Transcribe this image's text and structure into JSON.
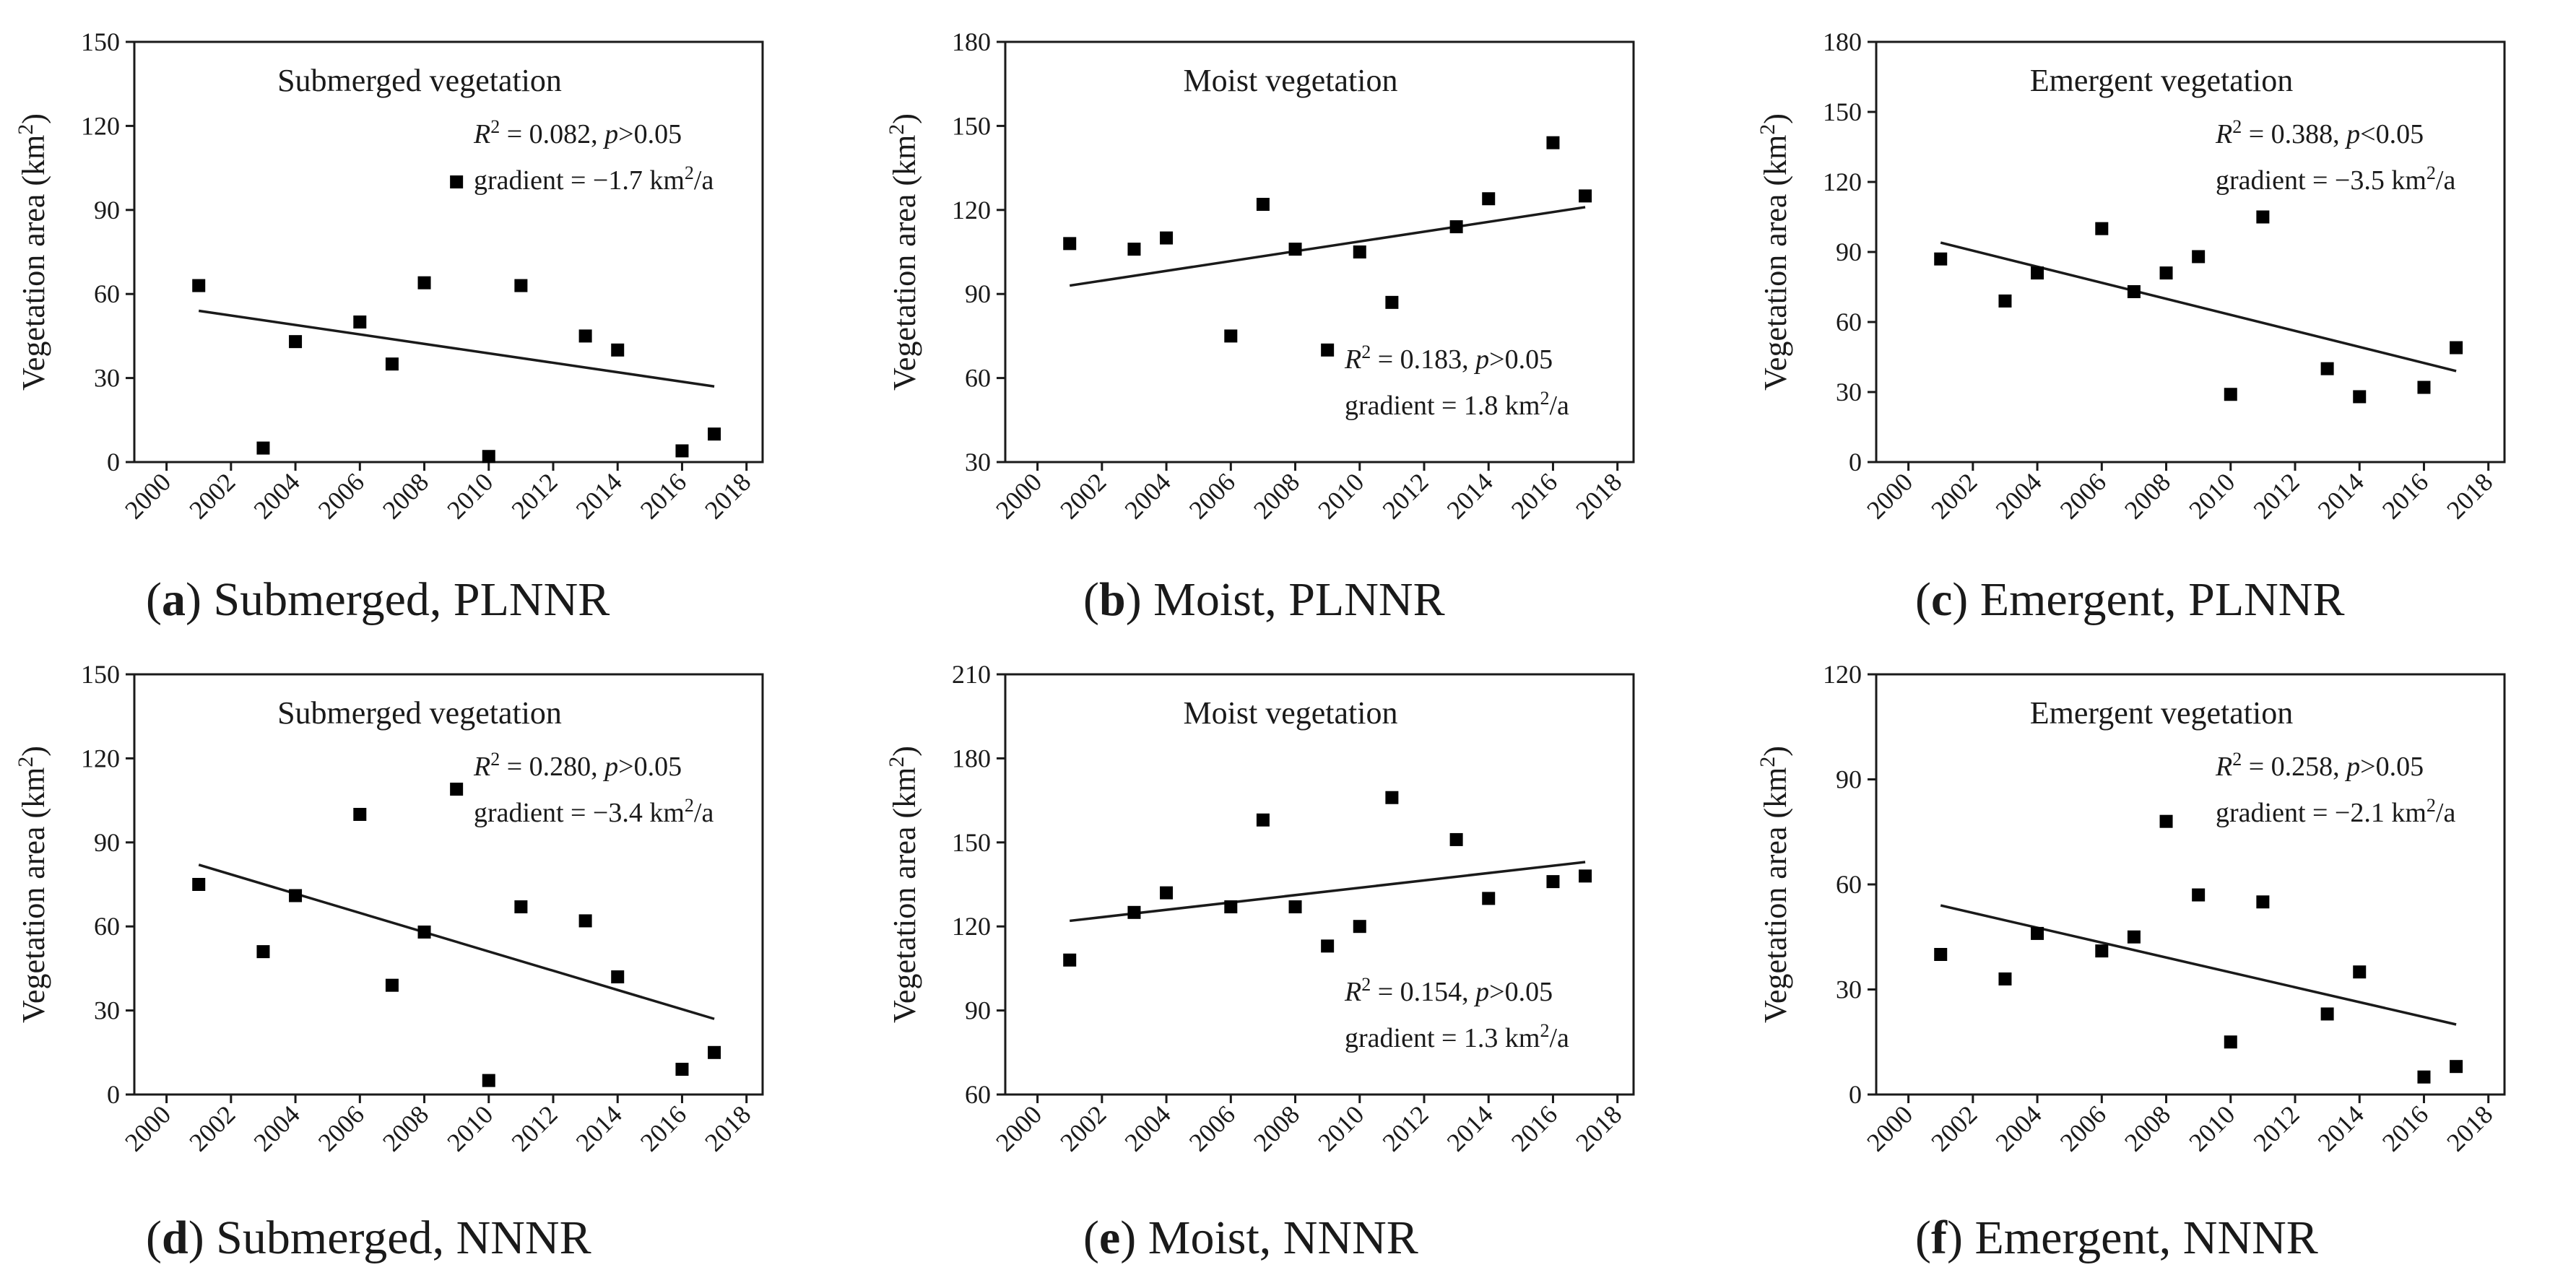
{
  "figure": {
    "background": "#ffffff",
    "ink": "#000000"
  },
  "chart_data": [
    {
      "type": "scatter",
      "panel": "a",
      "title": "Submerged vegetation",
      "caption_letter": "a",
      "caption_rest": " Submerged, PLNNR",
      "ylabel_main": "Vegetation area (km",
      "ylabel_sup": "2",
      "ylabel_end": ")",
      "x_ticks": [
        2000,
        2002,
        2004,
        2006,
        2008,
        2010,
        2012,
        2014,
        2016,
        2018
      ],
      "xlim": [
        1999,
        2018.5
      ],
      "ylim": [
        0,
        150
      ],
      "y_ticks": [
        0,
        30,
        60,
        90,
        120,
        150
      ],
      "points": [
        [
          2001,
          63
        ],
        [
          2003,
          5
        ],
        [
          2004,
          43
        ],
        [
          2006,
          50
        ],
        [
          2007,
          35
        ],
        [
          2008,
          64
        ],
        [
          2009,
          100
        ],
        [
          2010,
          2
        ],
        [
          2011,
          63
        ],
        [
          2013,
          45
        ],
        [
          2014,
          40
        ],
        [
          2016,
          4
        ],
        [
          2017,
          10
        ]
      ],
      "fit": {
        "x": [
          2001,
          2017
        ],
        "y": [
          54,
          27
        ]
      },
      "stats": {
        "r2": "0.082",
        "p_op": ">",
        "p_val": "0.05",
        "gradient": "−1.7"
      },
      "stat_pos": "top-right"
    },
    {
      "type": "scatter",
      "panel": "b",
      "title": "Moist vegetation",
      "caption_letter": "b",
      "caption_rest": " Moist, PLNNR",
      "ylabel_main": "Vegetation area (km",
      "ylabel_sup": "2",
      "ylabel_end": ")",
      "x_ticks": [
        2000,
        2002,
        2004,
        2006,
        2008,
        2010,
        2012,
        2014,
        2016,
        2018
      ],
      "xlim": [
        1999,
        2018.5
      ],
      "ylim": [
        30,
        180
      ],
      "y_ticks": [
        30,
        60,
        90,
        120,
        150,
        180
      ],
      "points": [
        [
          2001,
          108
        ],
        [
          2003,
          106
        ],
        [
          2004,
          110
        ],
        [
          2006,
          75
        ],
        [
          2007,
          122
        ],
        [
          2008,
          106
        ],
        [
          2009,
          70
        ],
        [
          2010,
          105
        ],
        [
          2011,
          87
        ],
        [
          2013,
          114
        ],
        [
          2014,
          124
        ],
        [
          2016,
          144
        ],
        [
          2017,
          125
        ]
      ],
      "fit": {
        "x": [
          2001,
          2017
        ],
        "y": [
          93,
          121
        ]
      },
      "stats": {
        "r2": "0.183",
        "p_op": ">",
        "p_val": "0.05",
        "gradient": "1.8"
      },
      "stat_pos": "bottom-right"
    },
    {
      "type": "scatter",
      "panel": "c",
      "title": "Emergent vegetation",
      "caption_letter": "c",
      "caption_rest": " Emergent, PLNNR",
      "ylabel_main": "Vegetation area (km",
      "ylabel_sup": "2",
      "ylabel_end": ")",
      "x_ticks": [
        2000,
        2002,
        2004,
        2006,
        2008,
        2010,
        2012,
        2014,
        2016,
        2018
      ],
      "xlim": [
        1999,
        2018.5
      ],
      "ylim": [
        0,
        180
      ],
      "y_ticks": [
        0,
        30,
        60,
        90,
        120,
        150,
        180
      ],
      "points": [
        [
          2001,
          87
        ],
        [
          2003,
          69
        ],
        [
          2004,
          81
        ],
        [
          2006,
          100
        ],
        [
          2007,
          73
        ],
        [
          2008,
          81
        ],
        [
          2009,
          88
        ],
        [
          2010,
          29
        ],
        [
          2011,
          105
        ],
        [
          2013,
          40
        ],
        [
          2014,
          28
        ],
        [
          2016,
          32
        ],
        [
          2017,
          49
        ]
      ],
      "fit": {
        "x": [
          2001,
          2017
        ],
        "y": [
          94,
          39
        ]
      },
      "stats": {
        "r2": "0.388",
        "p_op": "<",
        "p_val": "0.05",
        "gradient": "−3.5"
      },
      "stat_pos": "top-right"
    },
    {
      "type": "scatter",
      "panel": "d",
      "title": "Submerged vegetation",
      "caption_letter": "d",
      "caption_rest": " Submerged, NNNR",
      "ylabel_main": "Vegetation area (km",
      "ylabel_sup": "2",
      "ylabel_end": ")",
      "x_ticks": [
        2000,
        2002,
        2004,
        2006,
        2008,
        2010,
        2012,
        2014,
        2016,
        2018
      ],
      "xlim": [
        1999,
        2018.5
      ],
      "ylim": [
        0,
        150
      ],
      "y_ticks": [
        0,
        30,
        60,
        90,
        120,
        150
      ],
      "points": [
        [
          2001,
          75
        ],
        [
          2003,
          51
        ],
        [
          2004,
          71
        ],
        [
          2006,
          100
        ],
        [
          2007,
          39
        ],
        [
          2008,
          58
        ],
        [
          2009,
          109
        ],
        [
          2010,
          5
        ],
        [
          2011,
          67
        ],
        [
          2013,
          62
        ],
        [
          2014,
          42
        ],
        [
          2016,
          9
        ],
        [
          2017,
          15
        ]
      ],
      "fit": {
        "x": [
          2001,
          2017
        ],
        "y": [
          82,
          27
        ]
      },
      "stats": {
        "r2": "0.280",
        "p_op": ">",
        "p_val": "0.05",
        "gradient": "−3.4"
      },
      "stat_pos": "top-right"
    },
    {
      "type": "scatter",
      "panel": "e",
      "title": "Moist vegetation",
      "caption_letter": "e",
      "caption_rest": " Moist, NNNR",
      "ylabel_main": "Vegetation area (km",
      "ylabel_sup": "2",
      "ylabel_end": ")",
      "x_ticks": [
        2000,
        2002,
        2004,
        2006,
        2008,
        2010,
        2012,
        2014,
        2016,
        2018
      ],
      "xlim": [
        1999,
        2018.5
      ],
      "ylim": [
        60,
        210
      ],
      "y_ticks": [
        60,
        90,
        120,
        150,
        180,
        210
      ],
      "points": [
        [
          2001,
          108
        ],
        [
          2003,
          125
        ],
        [
          2004,
          132
        ],
        [
          2006,
          127
        ],
        [
          2007,
          158
        ],
        [
          2008,
          127
        ],
        [
          2009,
          113
        ],
        [
          2010,
          120
        ],
        [
          2011,
          166
        ],
        [
          2013,
          151
        ],
        [
          2014,
          130
        ],
        [
          2016,
          136
        ],
        [
          2017,
          138
        ]
      ],
      "fit": {
        "x": [
          2001,
          2017
        ],
        "y": [
          122,
          143
        ]
      },
      "stats": {
        "r2": "0.154",
        "p_op": ">",
        "p_val": "0.05",
        "gradient": "1.3"
      },
      "stat_pos": "bottom-right"
    },
    {
      "type": "scatter",
      "panel": "f",
      "title": "Emergent vegetation",
      "caption_letter": "f",
      "caption_rest": " Emergent, NNNR",
      "ylabel_main": "Vegetation area (km",
      "ylabel_sup": "2",
      "ylabel_end": ")",
      "x_ticks": [
        2000,
        2002,
        2004,
        2006,
        2008,
        2010,
        2012,
        2014,
        2016,
        2018
      ],
      "xlim": [
        1999,
        2018.5
      ],
      "ylim": [
        0,
        120
      ],
      "y_ticks": [
        0,
        30,
        60,
        90,
        120
      ],
      "points": [
        [
          2001,
          40
        ],
        [
          2003,
          33
        ],
        [
          2004,
          46
        ],
        [
          2006,
          41
        ],
        [
          2007,
          45
        ],
        [
          2008,
          78
        ],
        [
          2009,
          57
        ],
        [
          2010,
          15
        ],
        [
          2011,
          55
        ],
        [
          2013,
          23
        ],
        [
          2014,
          35
        ],
        [
          2016,
          5
        ],
        [
          2017,
          8
        ]
      ],
      "fit": {
        "x": [
          2001,
          2017
        ],
        "y": [
          54,
          20
        ]
      },
      "stats": {
        "r2": "0.258",
        "p_op": ">",
        "p_val": "0.05",
        "gradient": "−2.1"
      },
      "stat_pos": "top-right"
    }
  ]
}
